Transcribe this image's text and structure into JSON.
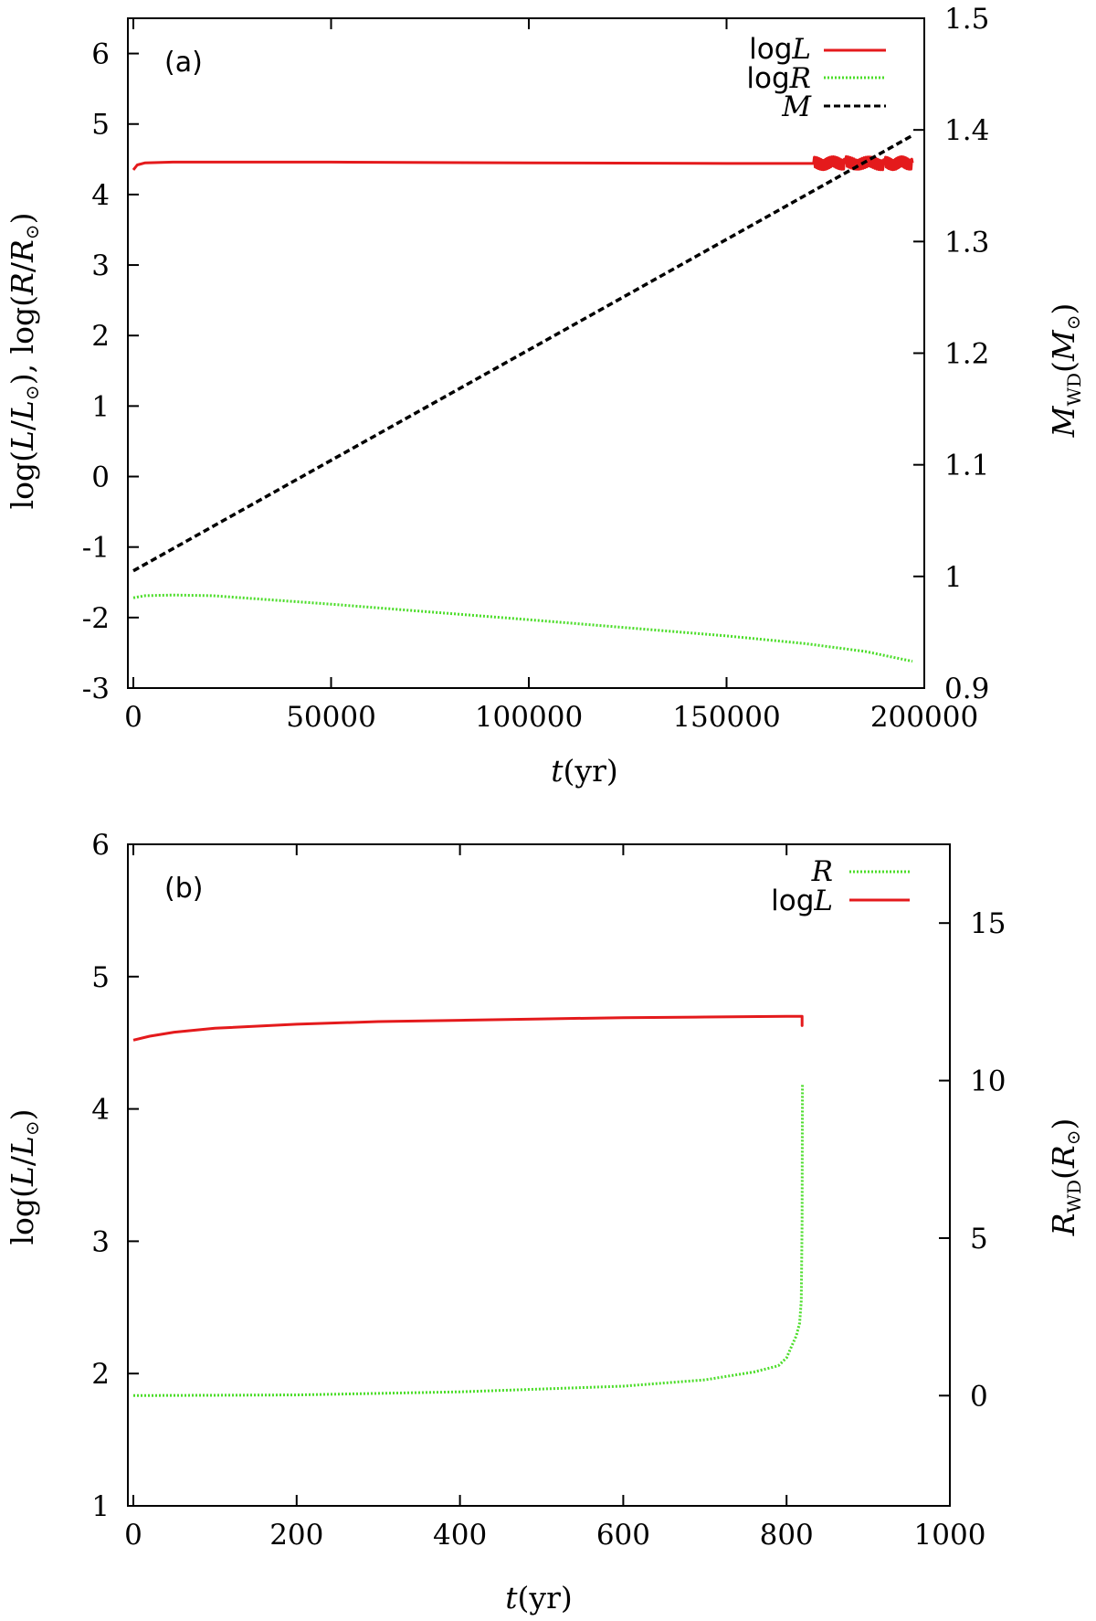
{
  "chart_data": [
    {
      "type": "line",
      "panel_label": "(a)",
      "xlabel": "t(yr)",
      "ylabel": "log(L/L⊙), log(R/R⊙)",
      "y2label": "MWD(M⊙)",
      "xlim": [
        0,
        200000
      ],
      "ylim": [
        -3,
        6.5
      ],
      "y2lim": [
        0.9,
        1.5
      ],
      "xticks": [
        0,
        50000,
        100000,
        150000,
        200000
      ],
      "yticks": [
        -3,
        -2,
        -1,
        0,
        1,
        2,
        3,
        4,
        5,
        6
      ],
      "y2ticks": [
        0.9,
        1,
        1.1,
        1.2,
        1.3,
        1.4,
        1.5
      ],
      "legend_position": "top-right",
      "series": [
        {
          "name": "logL",
          "axis": "left",
          "color": "#e41a1c",
          "style": "solid",
          "x": [
            0,
            1000,
            3000,
            10000,
            50000,
            100000,
            150000,
            172000,
            180000,
            190000,
            197000
          ],
          "y": [
            4.35,
            4.42,
            4.45,
            4.46,
            4.46,
            4.45,
            4.44,
            4.44,
            4.45,
            4.44,
            4.45
          ],
          "noise_from": 172000
        },
        {
          "name": "logR",
          "axis": "left",
          "color": "#4cdd2a",
          "style": "dotted",
          "x": [
            0,
            3000,
            10000,
            20000,
            50000,
            100000,
            150000,
            170000,
            185000,
            197000
          ],
          "y": [
            -1.72,
            -1.69,
            -1.68,
            -1.69,
            -1.81,
            -2.03,
            -2.26,
            -2.37,
            -2.48,
            -2.62
          ]
        },
        {
          "name": "M",
          "axis": "right",
          "color": "#000000",
          "style": "dashed",
          "x": [
            0,
            197000
          ],
          "y": [
            1.005,
            1.395
          ]
        }
      ]
    },
    {
      "type": "line",
      "panel_label": "(b)",
      "xlabel": "t(yr)",
      "ylabel": "log(L/L⊙)",
      "y2label": "RWD(R⊙)",
      "xlim": [
        0,
        1000
      ],
      "ylim": [
        1,
        6
      ],
      "y2lim": [
        -3.5,
        17.5
      ],
      "xticks": [
        0,
        200,
        400,
        600,
        800,
        1000
      ],
      "yticks": [
        1,
        2,
        3,
        4,
        5,
        6
      ],
      "y2ticks": [
        0,
        5,
        10,
        15
      ],
      "legend_position": "top-right",
      "series": [
        {
          "name": "R",
          "axis": "right",
          "color": "#4cdd2a",
          "style": "dotted",
          "x": [
            0,
            200,
            400,
            600,
            700,
            760,
            790,
            800,
            805,
            812,
            816,
            818,
            819,
            819.5
          ],
          "y": [
            0.0,
            0.02,
            0.12,
            0.3,
            0.5,
            0.75,
            0.95,
            1.2,
            1.5,
            1.9,
            2.3,
            3.0,
            5.5,
            9.9
          ]
        },
        {
          "name": "logL",
          "axis": "left",
          "color": "#e41a1c",
          "style": "solid",
          "x": [
            0,
            20,
            50,
            100,
            200,
            300,
            400,
            500,
            600,
            700,
            800,
            819,
            819,
            819
          ],
          "y": [
            4.52,
            4.55,
            4.58,
            4.61,
            4.64,
            4.66,
            4.67,
            4.68,
            4.69,
            4.695,
            4.7,
            4.7,
            4.63,
            4.7
          ]
        }
      ]
    }
  ]
}
